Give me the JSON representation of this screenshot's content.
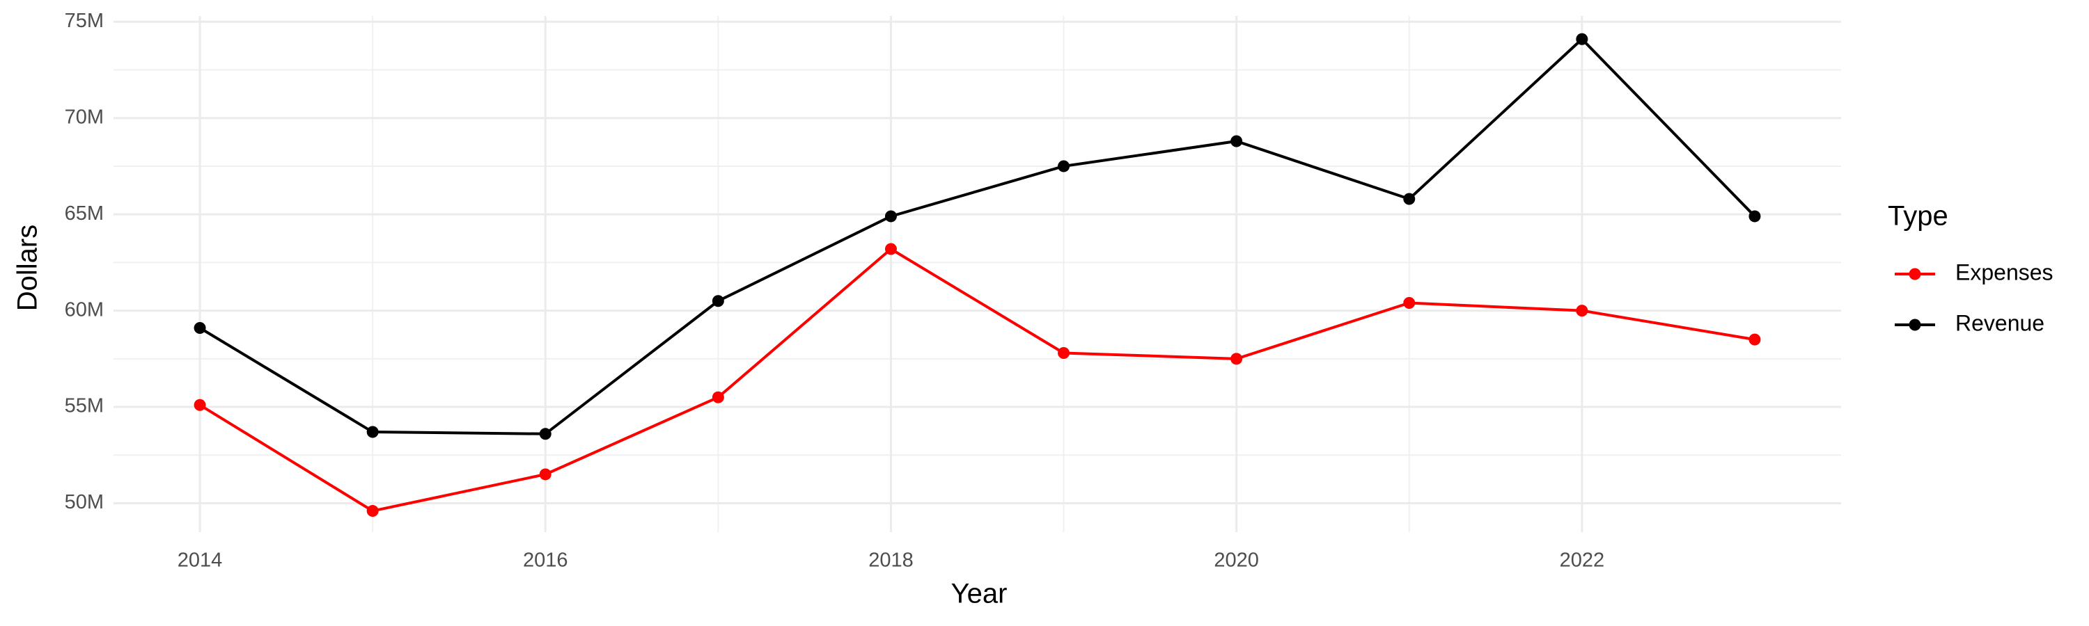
{
  "chart_data": {
    "type": "line",
    "x_label": "Year",
    "y_label": "Dollars",
    "x": [
      2014,
      2015,
      2016,
      2017,
      2018,
      2019,
      2020,
      2021,
      2022,
      2023
    ],
    "series": [
      {
        "name": "Expenses",
        "color": "#ff0000",
        "values": [
          55100000,
          49600000,
          51500000,
          55500000,
          63200000,
          57800000,
          57500000,
          60400000,
          60000000,
          58500000
        ]
      },
      {
        "name": "Revenue",
        "color": "#000000",
        "values": [
          59100000,
          53700000,
          53600000,
          60500000,
          64900000,
          67500000,
          68800000,
          65800000,
          74100000,
          64900000
        ]
      }
    ],
    "xlim": [
      2013.5,
      2023.5
    ],
    "xticks": [
      2014,
      2016,
      2018,
      2020,
      2022
    ],
    "ylim": [
      48500000,
      75300000
    ],
    "yticks": [
      {
        "value": 50000000,
        "label": "50M"
      },
      {
        "value": 55000000,
        "label": "55M"
      },
      {
        "value": 60000000,
        "label": "60M"
      },
      {
        "value": 65000000,
        "label": "65M"
      },
      {
        "value": 70000000,
        "label": "70M"
      },
      {
        "value": 75000000,
        "label": "75M"
      }
    ],
    "grid": true,
    "legend_title": "Type",
    "legend": "right"
  }
}
